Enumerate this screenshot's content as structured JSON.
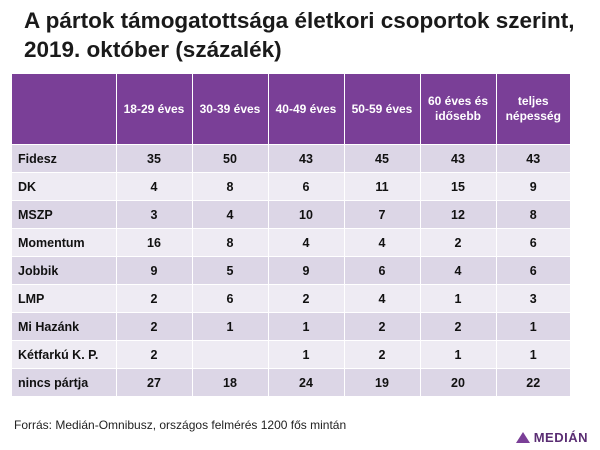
{
  "title": "A pártok támogatottsága életkori csoportok szerint, 2019. október (százalék)",
  "source": "Forrás: Medián-Omnibusz, országos felmérés 1200 fős mintán",
  "logo": {
    "text": "MEDIÁN",
    "color": "#7a3f97"
  },
  "colors": {
    "header": "#7a3f97",
    "row_odd": "#dcd6e6",
    "row_even": "#eeebf3"
  },
  "chart_data": {
    "type": "table",
    "columns": [
      "18-29 éves",
      "30-39 éves",
      "40-49 éves",
      "50-59 éves",
      "60 éves és idősebb",
      "teljes népesség"
    ],
    "rows": [
      {
        "label": "Fidesz",
        "values": [
          "35",
          "50",
          "43",
          "45",
          "43",
          "43"
        ]
      },
      {
        "label": "DK",
        "values": [
          "4",
          "8",
          "6",
          "11",
          "15",
          "9"
        ]
      },
      {
        "label": "MSZP",
        "values": [
          "3",
          "4",
          "10",
          "7",
          "12",
          "8"
        ]
      },
      {
        "label": "Momentum",
        "values": [
          "16",
          "8",
          "4",
          "4",
          "2",
          "6"
        ]
      },
      {
        "label": "Jobbik",
        "values": [
          "9",
          "5",
          "9",
          "6",
          "4",
          "6"
        ]
      },
      {
        "label": "LMP",
        "values": [
          "2",
          "6",
          "2",
          "4",
          "1",
          "3"
        ]
      },
      {
        "label": "Mi Hazánk",
        "values": [
          "2",
          "1",
          "1",
          "2",
          "2",
          "1"
        ]
      },
      {
        "label": "Kétfarkú K. P.",
        "values": [
          "2",
          "",
          "1",
          "2",
          "1",
          "1"
        ]
      },
      {
        "label": "nincs pártja",
        "values": [
          "27",
          "18",
          "24",
          "19",
          "20",
          "22"
        ]
      }
    ]
  }
}
